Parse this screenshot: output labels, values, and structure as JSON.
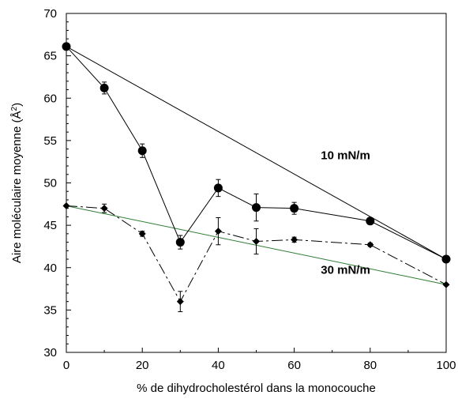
{
  "chart_data": {
    "type": "line",
    "xlabel": "% de dihydrocholestérol dans la monocouche",
    "ylabel_main": "Aire moléculaire moyenne (Å",
    "ylabel_sup": "2",
    "ylabel_close": ")",
    "xlim": [
      0,
      100
    ],
    "ylim": [
      30,
      70
    ],
    "xticks": [
      "0",
      "20",
      "40",
      "60",
      "80",
      "100"
    ],
    "yticks": [
      "30",
      "35",
      "40",
      "45",
      "50",
      "55",
      "60",
      "65",
      "70"
    ],
    "grid": false,
    "annotations": [
      {
        "text": "10 mN/m",
        "x": 67,
        "y": 52.8
      },
      {
        "text": "30 mN/m",
        "x": 67,
        "y": 39.3
      }
    ],
    "series": [
      {
        "marker": "circle",
        "line": "solid",
        "x": [
          0,
          10,
          20,
          30,
          40,
          50,
          60,
          80,
          100
        ],
        "y": [
          66.1,
          61.2,
          53.8,
          43.0,
          49.4,
          47.1,
          47.0,
          45.5,
          41.0
        ],
        "err": [
          0,
          0.7,
          0.8,
          0.8,
          1.0,
          1.6,
          0.7,
          0.4,
          0
        ]
      },
      {
        "marker": "diamond",
        "line": "dashdot",
        "x": [
          0,
          10,
          20,
          30,
          40,
          50,
          60,
          80,
          100
        ],
        "y": [
          47.3,
          47.0,
          44.0,
          36.0,
          44.3,
          43.1,
          43.3,
          42.7,
          38.0
        ],
        "err": [
          0,
          0.5,
          0.3,
          1.2,
          1.6,
          1.5,
          0.3,
          0.2,
          0
        ]
      }
    ],
    "ideal_lines": [
      {
        "x": [
          0,
          100
        ],
        "y": [
          66.1,
          41.0
        ],
        "color": "#000000"
      },
      {
        "x": [
          0,
          100
        ],
        "y": [
          47.3,
          38.0
        ],
        "color": "#2e7d32"
      }
    ]
  }
}
